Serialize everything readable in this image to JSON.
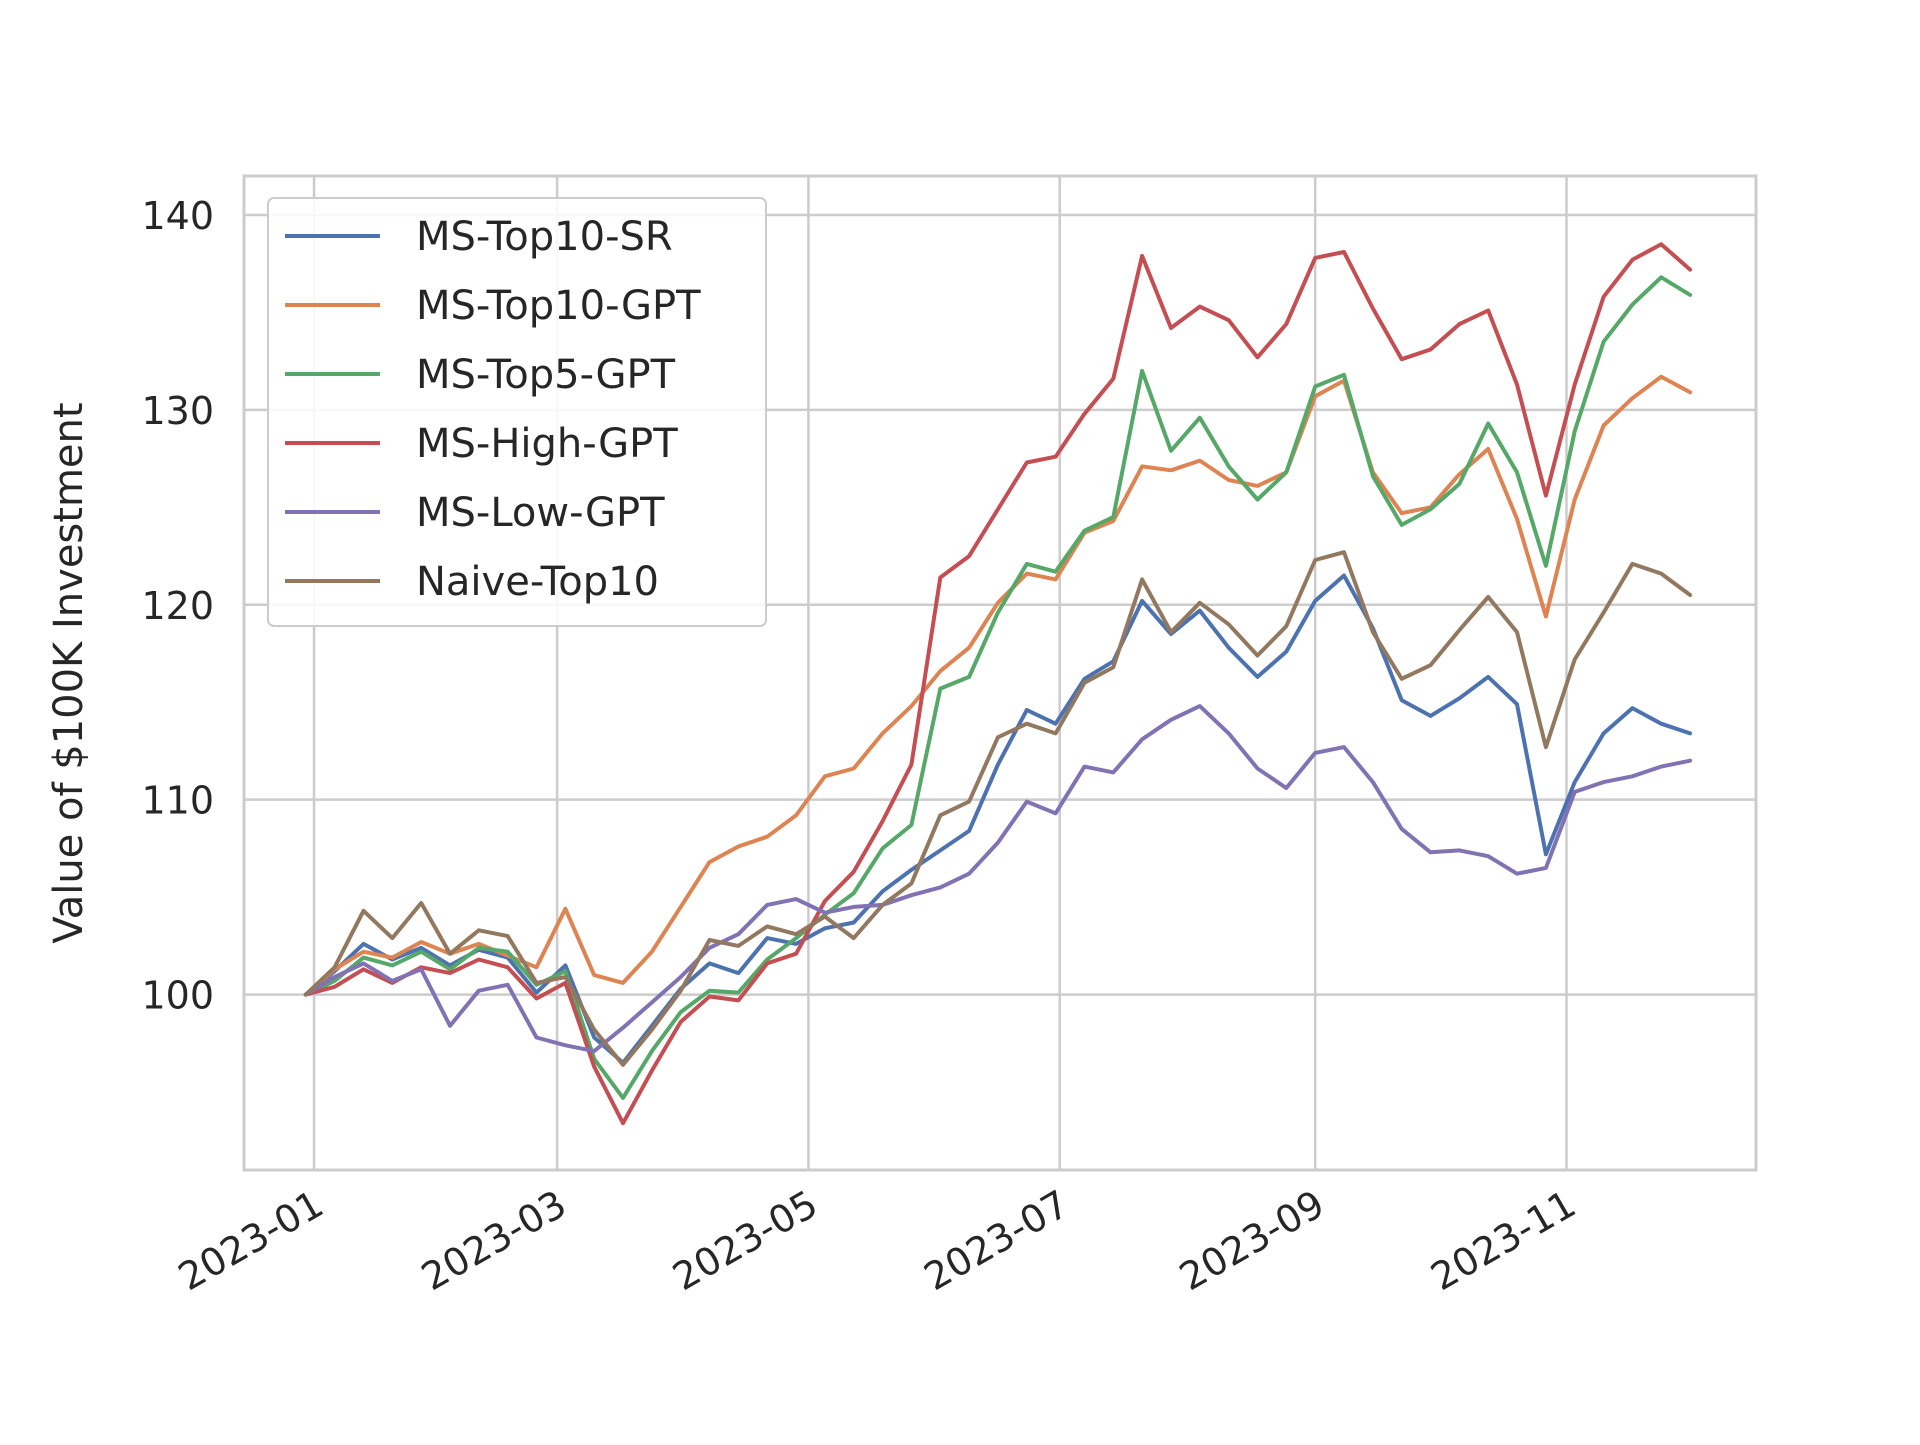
{
  "chart_data": {
    "type": "line",
    "title": "",
    "xlabel": "",
    "ylabel": "Value of $100K Investment",
    "xlim": [
      "2022-12-15",
      "2023-12-17"
    ],
    "ylim": [
      91,
      142
    ],
    "x_ticks": [
      "2023-01",
      "2023-03",
      "2023-05",
      "2023-07",
      "2023-09",
      "2023-11"
    ],
    "y_ticks": [
      100,
      110,
      120,
      130,
      140
    ],
    "grid": true,
    "legend_position": "upper-left",
    "colors": {
      "MS-Top10-SR": "#4c72b0",
      "MS-Top10-GPT": "#dd8452",
      "MS-Top5-GPT": "#55a868",
      "MS-High-GPT": "#c44e52",
      "MS-Low-GPT": "#8172b3",
      "Naive-Top10": "#937860"
    },
    "x": [
      "2022-12-30",
      "2023-01-06",
      "2023-01-13",
      "2023-01-20",
      "2023-01-27",
      "2023-02-03",
      "2023-02-10",
      "2023-02-17",
      "2023-02-24",
      "2023-03-03",
      "2023-03-10",
      "2023-03-17",
      "2023-03-24",
      "2023-03-31",
      "2023-04-07",
      "2023-04-14",
      "2023-04-21",
      "2023-04-28",
      "2023-05-05",
      "2023-05-12",
      "2023-05-19",
      "2023-05-26",
      "2023-06-02",
      "2023-06-09",
      "2023-06-16",
      "2023-06-23",
      "2023-06-30",
      "2023-07-07",
      "2023-07-14",
      "2023-07-21",
      "2023-07-28",
      "2023-08-04",
      "2023-08-11",
      "2023-08-18",
      "2023-08-25",
      "2023-09-01",
      "2023-09-08",
      "2023-09-15",
      "2023-09-22",
      "2023-09-29",
      "2023-10-06",
      "2023-10-13",
      "2023-10-20",
      "2023-10-27",
      "2023-11-03",
      "2023-11-10",
      "2023-11-17",
      "2023-11-24",
      "2023-12-01"
    ],
    "series": [
      {
        "name": "MS-Top10-SR",
        "values": [
          100,
          101.2,
          102.6,
          101.8,
          102.4,
          101.5,
          102.3,
          101.9,
          100.1,
          101.5,
          97.8,
          96.5,
          98.4,
          100.3,
          101.6,
          101.1,
          102.9,
          102.6,
          103.4,
          103.7,
          105.3,
          106.4,
          107.4,
          108.4,
          111.8,
          114.6,
          113.9,
          116.2,
          117.1,
          120.2,
          118.5,
          119.7,
          117.8,
          116.3,
          117.6,
          120.2,
          121.5,
          118.8,
          115.1,
          114.3,
          115.2,
          116.3,
          114.9,
          107.2,
          110.9,
          113.4,
          114.7,
          113.9,
          113.4
        ]
      },
      {
        "name": "MS-Top10-GPT",
        "values": [
          100,
          101.3,
          102.2,
          101.9,
          102.7,
          102.1,
          102.6,
          102.0,
          101.4,
          104.4,
          101.0,
          100.6,
          102.2,
          104.5,
          106.8,
          107.6,
          108.1,
          109.2,
          111.2,
          111.6,
          113.4,
          114.8,
          116.6,
          117.8,
          120.1,
          121.6,
          121.3,
          123.7,
          124.3,
          127.1,
          126.9,
          127.4,
          126.4,
          126.1,
          126.8,
          130.7,
          131.5,
          126.8,
          124.7,
          125.0,
          126.7,
          128.0,
          124.4,
          119.4,
          125.4,
          129.2,
          130.6,
          131.7,
          130.9
        ]
      },
      {
        "name": "MS-Top5-GPT",
        "values": [
          100,
          100.7,
          101.9,
          101.5,
          102.2,
          101.3,
          102.4,
          102.2,
          100.5,
          101.2,
          96.7,
          94.7,
          97.1,
          99.1,
          100.2,
          100.1,
          101.8,
          102.9,
          104.1,
          105.2,
          107.5,
          108.7,
          115.7,
          116.3,
          119.6,
          122.1,
          121.7,
          123.8,
          124.5,
          132.0,
          127.9,
          129.6,
          127.1,
          125.4,
          126.8,
          131.2,
          131.8,
          126.6,
          124.1,
          124.9,
          126.2,
          129.3,
          126.8,
          122.0,
          128.9,
          133.5,
          135.4,
          136.8,
          135.9
        ]
      },
      {
        "name": "MS-High-GPT",
        "values": [
          100,
          100.4,
          101.3,
          100.6,
          101.4,
          101.1,
          101.8,
          101.4,
          99.8,
          100.6,
          96.3,
          93.4,
          96.1,
          98.6,
          99.9,
          99.7,
          101.6,
          102.1,
          104.8,
          106.3,
          108.9,
          111.8,
          121.4,
          122.5,
          124.9,
          127.3,
          127.6,
          129.8,
          131.6,
          137.9,
          134.2,
          135.3,
          134.6,
          132.7,
          134.4,
          137.8,
          138.1,
          135.2,
          132.6,
          133.1,
          134.4,
          135.1,
          131.3,
          125.6,
          131.3,
          135.8,
          137.7,
          138.5,
          137.2
        ]
      },
      {
        "name": "MS-Low-GPT",
        "values": [
          100,
          100.9,
          101.6,
          100.7,
          101.3,
          98.4,
          100.2,
          100.5,
          97.8,
          97.4,
          97.1,
          98.3,
          99.6,
          100.9,
          102.4,
          103.1,
          104.6,
          104.9,
          104.2,
          104.5,
          104.6,
          105.1,
          105.5,
          106.2,
          107.8,
          109.9,
          109.3,
          111.7,
          111.4,
          113.1,
          114.1,
          114.8,
          113.4,
          111.6,
          110.6,
          112.4,
          112.7,
          110.9,
          108.5,
          107.3,
          107.4,
          107.1,
          106.2,
          106.5,
          110.4,
          110.9,
          111.2,
          111.7,
          112.0
        ]
      },
      {
        "name": "Naive-Top10",
        "values": [
          100,
          101.4,
          104.3,
          102.9,
          104.7,
          102.1,
          103.3,
          103.0,
          100.6,
          100.9,
          98.2,
          96.4,
          98.2,
          100.2,
          102.8,
          102.5,
          103.5,
          103.1,
          104.0,
          102.9,
          104.6,
          105.7,
          109.2,
          109.9,
          113.2,
          113.9,
          113.4,
          116.0,
          116.8,
          121.3,
          118.6,
          120.1,
          119.0,
          117.4,
          118.9,
          122.3,
          122.7,
          118.6,
          116.2,
          116.9,
          118.7,
          120.4,
          118.6,
          112.7,
          117.2,
          119.6,
          122.1,
          121.6,
          120.5
        ]
      }
    ]
  }
}
